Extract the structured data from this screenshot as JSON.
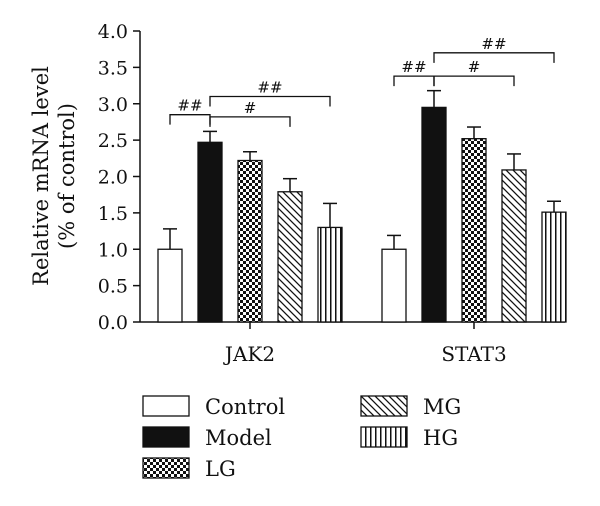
{
  "chart_data": {
    "type": "bar",
    "ylabel_line1": "Relative mRNA level",
    "ylabel_line2": "(% of control)",
    "ylim": [
      0,
      4.0
    ],
    "yticks": [
      "0.0",
      "0.5",
      "1.0",
      "1.5",
      "2.0",
      "2.5",
      "3.0",
      "3.5",
      "4.0"
    ],
    "grid": false,
    "legend_position": "bottom",
    "categories": [
      "JAK2",
      "STAT3"
    ],
    "series": [
      {
        "name": "Control",
        "pattern": "none",
        "values": [
          1.0,
          1.0
        ],
        "errors": [
          0.28,
          0.19
        ]
      },
      {
        "name": "Model",
        "pattern": "solid",
        "values": [
          2.47,
          2.95
        ],
        "errors": [
          0.15,
          0.23
        ]
      },
      {
        "name": "LG",
        "pattern": "checker",
        "values": [
          2.22,
          2.52
        ],
        "errors": [
          0.12,
          0.16
        ]
      },
      {
        "name": "MG",
        "pattern": "diagonal",
        "values": [
          1.79,
          2.09
        ],
        "errors": [
          0.18,
          0.22
        ]
      },
      {
        "name": "HG",
        "pattern": "vertical",
        "values": [
          1.3,
          1.51
        ],
        "errors": [
          0.33,
          0.15
        ]
      }
    ],
    "annotations": [
      {
        "category": 0,
        "from": 0,
        "to": 1,
        "level": 2.85,
        "label": "##"
      },
      {
        "category": 0,
        "from": 1,
        "to": 3,
        "level": 2.82,
        "label": "#"
      },
      {
        "category": 0,
        "from": 1,
        "to": 4,
        "level": 3.1,
        "label": "##"
      },
      {
        "category": 1,
        "from": 0,
        "to": 1,
        "level": 3.38,
        "label": "##"
      },
      {
        "category": 1,
        "from": 1,
        "to": 3,
        "level": 3.38,
        "label": "#"
      },
      {
        "category": 1,
        "from": 1,
        "to": 4,
        "level": 3.7,
        "label": "##"
      }
    ]
  },
  "colors": {
    "ink": "#111111",
    "background": "#ffffff"
  }
}
